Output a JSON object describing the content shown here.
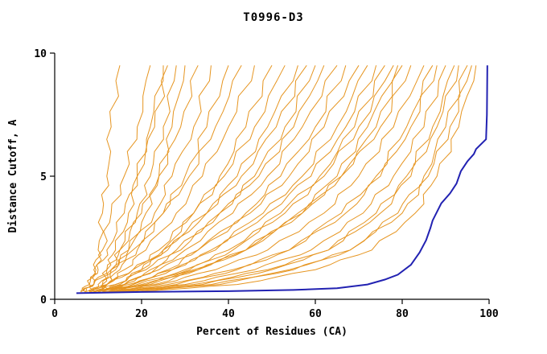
{
  "chart_data": {
    "type": "line",
    "title": "T0996-D3",
    "xlabel": "Percent of Residues (CA)",
    "ylabel": "Distance Cutoff, A",
    "xlim": [
      0,
      100
    ],
    "ylim": [
      0,
      10
    ],
    "x_ticks": [
      0,
      20,
      40,
      60,
      80,
      100
    ],
    "y_ticks": [
      0,
      5,
      10
    ],
    "grid": false,
    "legend": "none",
    "colors": {
      "model_lines": "#e69520",
      "highlight_line": "#2222b2",
      "axis": "#000000",
      "text": "#000000",
      "background": "#ffffff"
    },
    "y_levels": [
      0.3,
      0.6,
      1.2,
      2,
      3.5,
      5,
      7,
      9.5
    ],
    "orange_series_x": [
      [
        8,
        9,
        9.5,
        10,
        11,
        12,
        13,
        15
      ],
      [
        7,
        8,
        9,
        11,
        13,
        16,
        19,
        22
      ],
      [
        10,
        11,
        12,
        14,
        17,
        19,
        22,
        25
      ],
      [
        6,
        8,
        10,
        12,
        16,
        19,
        23,
        26
      ],
      [
        9,
        11,
        13,
        15,
        19,
        22,
        25,
        28
      ],
      [
        11,
        12,
        14,
        17,
        21,
        24,
        27,
        30
      ],
      [
        7,
        9,
        12,
        15,
        20,
        24,
        29,
        33
      ],
      [
        8,
        10,
        13,
        17,
        23,
        27,
        32,
        36
      ],
      [
        10,
        12,
        15,
        19,
        25,
        30,
        35,
        40
      ],
      [
        6,
        9,
        13,
        18,
        25,
        31,
        37,
        43
      ],
      [
        9,
        12,
        16,
        21,
        28,
        34,
        40,
        46
      ],
      [
        12,
        15,
        20,
        25,
        32,
        38,
        44,
        50
      ],
      [
        8,
        12,
        18,
        24,
        32,
        39,
        46,
        53
      ],
      [
        10,
        14,
        20,
        26,
        35,
        42,
        49,
        56
      ],
      [
        7,
        12,
        18,
        25,
        35,
        43,
        51,
        58
      ],
      [
        11,
        16,
        22,
        29,
        38,
        46,
        53,
        60
      ],
      [
        8,
        14,
        21,
        28,
        38,
        47,
        55,
        62
      ],
      [
        10,
        16,
        23,
        30,
        41,
        49,
        57,
        65
      ],
      [
        12,
        18,
        26,
        33,
        44,
        52,
        60,
        67
      ],
      [
        9,
        16,
        24,
        33,
        45,
        54,
        62,
        70
      ],
      [
        11,
        18,
        27,
        36,
        48,
        57,
        65,
        72
      ],
      [
        8,
        17,
        27,
        37,
        49,
        59,
        67,
        74
      ],
      [
        13,
        21,
        31,
        41,
        52,
        61,
        69,
        76
      ],
      [
        10,
        19,
        30,
        40,
        53,
        62,
        70,
        78
      ],
      [
        14,
        23,
        33,
        44,
        56,
        65,
        72,
        79
      ],
      [
        12,
        22,
        33,
        44,
        57,
        66,
        74,
        80
      ],
      [
        10,
        20,
        32,
        44,
        57,
        66,
        75,
        82
      ],
      [
        12,
        24,
        37,
        49,
        62,
        70,
        78,
        85
      ],
      [
        15,
        28,
        42,
        54,
        66,
        74,
        81,
        87
      ],
      [
        11,
        26,
        41,
        54,
        67,
        75,
        82,
        88
      ],
      [
        14,
        30,
        46,
        59,
        71,
        78,
        85,
        90
      ],
      [
        16,
        34,
        50,
        63,
        74,
        81,
        87,
        92
      ],
      [
        13,
        32,
        49,
        63,
        75,
        82,
        88,
        93
      ],
      [
        17,
        38,
        55,
        68,
        79,
        85,
        90,
        95
      ],
      [
        15,
        36,
        54,
        68,
        80,
        86,
        91,
        96
      ],
      [
        18,
        42,
        60,
        73,
        83,
        88,
        93,
        97
      ]
    ],
    "highlight_series": [
      [
        5,
        0.25
      ],
      [
        20,
        0.3
      ],
      [
        40,
        0.33
      ],
      [
        55,
        0.38
      ],
      [
        65,
        0.45
      ],
      [
        72,
        0.6
      ],
      [
        76,
        0.8
      ],
      [
        79,
        1.0
      ],
      [
        82,
        1.4
      ],
      [
        84,
        1.9
      ],
      [
        85.5,
        2.4
      ],
      [
        86.5,
        2.9
      ],
      [
        87,
        3.2
      ],
      [
        89,
        3.9
      ],
      [
        91,
        4.3
      ],
      [
        92.5,
        4.7
      ],
      [
        93.5,
        5.2
      ],
      [
        95,
        5.6
      ],
      [
        96.5,
        5.9
      ],
      [
        97,
        6.1
      ],
      [
        99.3,
        6.5
      ],
      [
        99.5,
        7.5
      ],
      [
        99.6,
        9.5
      ]
    ]
  }
}
